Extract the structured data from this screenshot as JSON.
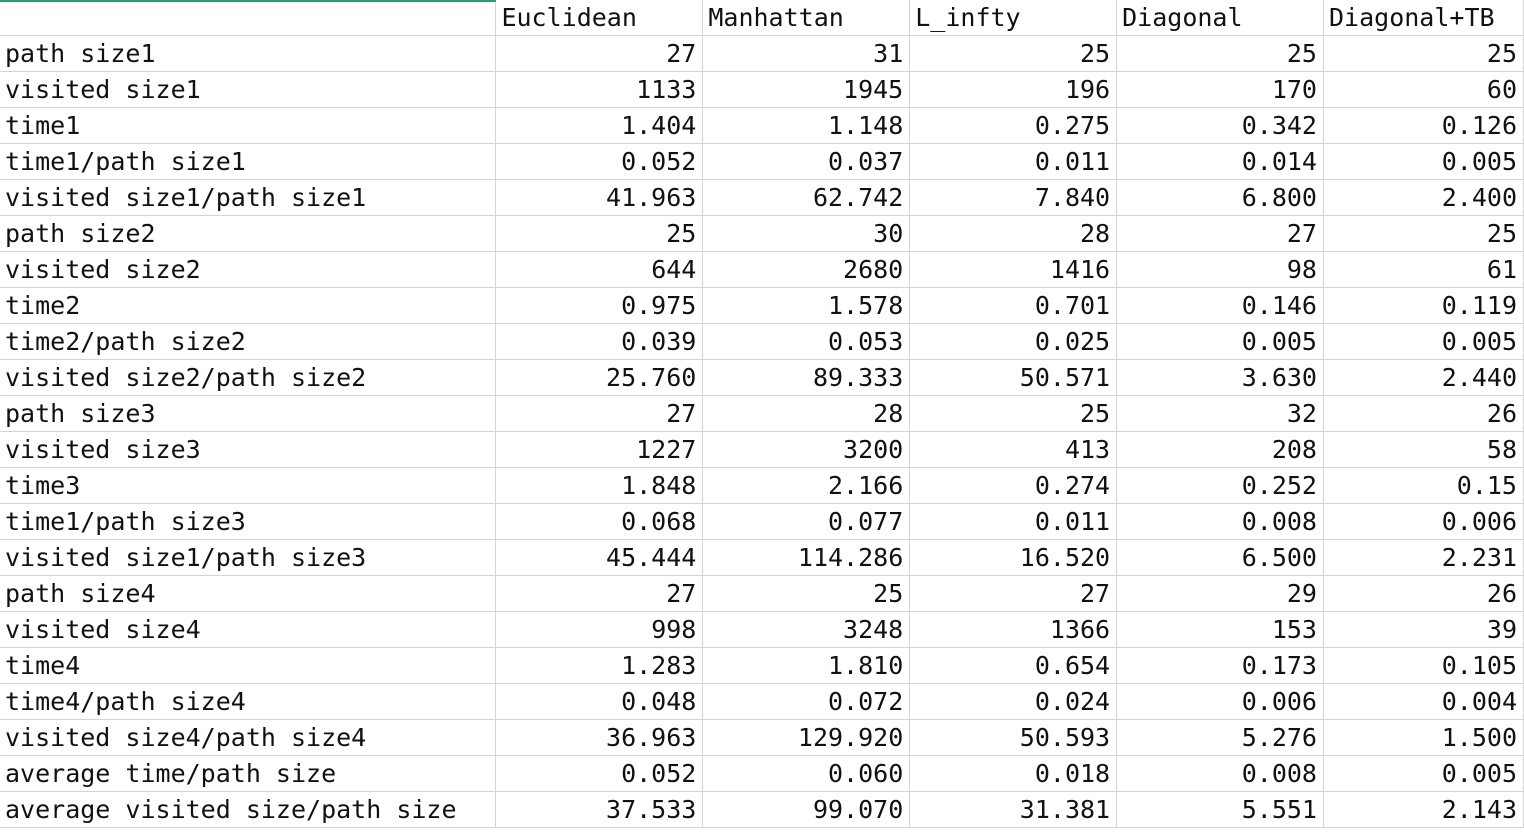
{
  "sheet": {
    "accent_color": "#21a366",
    "header": [
      "",
      "Euclidean",
      "Manhattan",
      "L_infty",
      "Diagonal",
      "Diagonal+TB"
    ],
    "rows": [
      {
        "label": "path size1",
        "values": [
          "27",
          "31",
          "25",
          "25",
          "25"
        ]
      },
      {
        "label": "visited size1",
        "values": [
          "1133",
          "1945",
          "196",
          "170",
          "60"
        ]
      },
      {
        "label": "time1",
        "values": [
          "1.404",
          "1.148",
          "0.275",
          "0.342",
          "0.126"
        ]
      },
      {
        "label": "time1/path size1",
        "values": [
          "0.052",
          "0.037",
          "0.011",
          "0.014",
          "0.005"
        ]
      },
      {
        "label": "visited size1/path size1",
        "values": [
          "41.963",
          "62.742",
          "7.840",
          "6.800",
          "2.400"
        ]
      },
      {
        "label": "path size2",
        "values": [
          "25",
          "30",
          "28",
          "27",
          "25"
        ]
      },
      {
        "label": "visited size2",
        "values": [
          "644",
          "2680",
          "1416",
          "98",
          "61"
        ]
      },
      {
        "label": "time2",
        "values": [
          "0.975",
          "1.578",
          "0.701",
          "0.146",
          "0.119"
        ]
      },
      {
        "label": "time2/path size2",
        "values": [
          "0.039",
          "0.053",
          "0.025",
          "0.005",
          "0.005"
        ]
      },
      {
        "label": "visited size2/path size2",
        "values": [
          "25.760",
          "89.333",
          "50.571",
          "3.630",
          "2.440"
        ]
      },
      {
        "label": "path size3",
        "values": [
          "27",
          "28",
          "25",
          "32",
          "26"
        ]
      },
      {
        "label": "visited size3",
        "values": [
          "1227",
          "3200",
          "413",
          "208",
          "58"
        ]
      },
      {
        "label": "time3",
        "values": [
          "1.848",
          "2.166",
          "0.274",
          "0.252",
          "0.15"
        ]
      },
      {
        "label": "time1/path size3",
        "values": [
          "0.068",
          "0.077",
          "0.011",
          "0.008",
          "0.006"
        ]
      },
      {
        "label": "visited size1/path size3",
        "values": [
          "45.444",
          "114.286",
          "16.520",
          "6.500",
          "2.231"
        ]
      },
      {
        "label": "path size4",
        "values": [
          "27",
          "25",
          "27",
          "29",
          "26"
        ]
      },
      {
        "label": "visited size4",
        "values": [
          "998",
          "3248",
          "1366",
          "153",
          "39"
        ]
      },
      {
        "label": "time4",
        "values": [
          "1.283",
          "1.810",
          "0.654",
          "0.173",
          "0.105"
        ]
      },
      {
        "label": "time4/path size4",
        "values": [
          "0.048",
          "0.072",
          "0.024",
          "0.006",
          "0.004"
        ]
      },
      {
        "label": "visited size4/path size4",
        "values": [
          "36.963",
          "129.920",
          "50.593",
          "5.276",
          "1.500"
        ]
      },
      {
        "label": "average time/path size",
        "values": [
          "0.052",
          "0.060",
          "0.018",
          "0.008",
          "0.005"
        ]
      },
      {
        "label": "average visited size/path size",
        "values": [
          "37.533",
          "99.070",
          "31.381",
          "5.551",
          "2.143"
        ]
      }
    ]
  }
}
